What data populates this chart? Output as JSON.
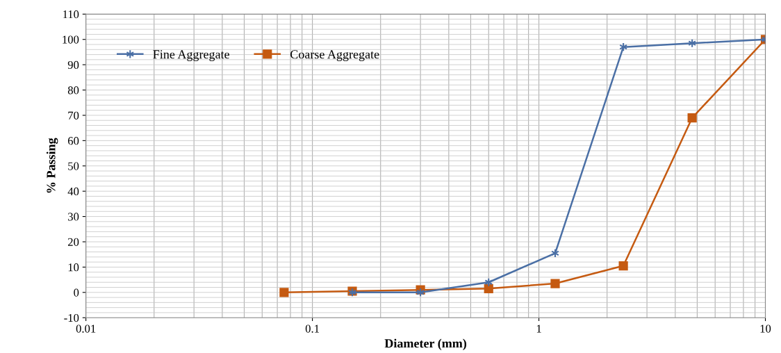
{
  "chart_data": {
    "type": "line",
    "xlabel": "Diameter (mm)",
    "ylabel": "% Passing",
    "log": "x",
    "xlim": [
      0.01,
      10
    ],
    "xticks": [
      0.01,
      0.1,
      1,
      10
    ],
    "ylim": [
      -10,
      110
    ],
    "yticks": [
      -10,
      0,
      10,
      20,
      30,
      40,
      50,
      60,
      70,
      80,
      90,
      100,
      110
    ],
    "grid": true,
    "legend": "top left",
    "series": [
      {
        "name": "Fine Aggregate",
        "color": "#4a6fa5",
        "marker": "cross",
        "x": [
          0.15,
          0.3,
          0.6,
          1.18,
          2.36,
          4.75,
          10
        ],
        "values": [
          0,
          0,
          4,
          15.5,
          97,
          98.5,
          100
        ]
      },
      {
        "name": "Coarse Aggregate",
        "color": "#c55a11",
        "marker": "square",
        "x": [
          0.075,
          0.15,
          0.3,
          0.6,
          1.18,
          2.36,
          4.75,
          10
        ],
        "values": [
          0,
          0.5,
          1,
          1.5,
          3.5,
          10.5,
          69,
          100
        ]
      }
    ]
  }
}
